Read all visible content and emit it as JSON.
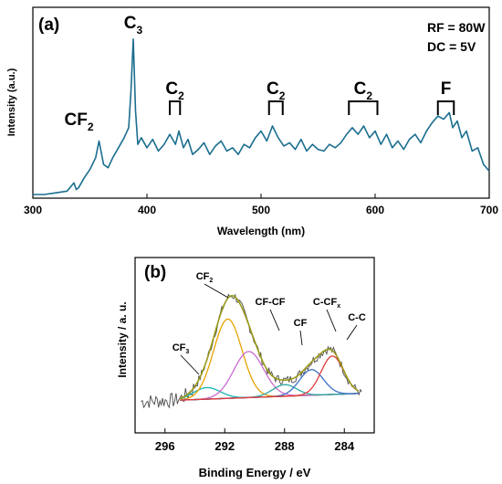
{
  "chart_data": [
    {
      "type": "line",
      "panel_label": "(a)",
      "xlabel": "Wavelength (nm)",
      "ylabel": "Intensity (a.u.)",
      "xlim": [
        300,
        700
      ],
      "x_ticks": [
        "300",
        "400",
        "500",
        "600",
        "700"
      ],
      "y_ticks_shown": false,
      "grid": false,
      "conditions": [
        "RF = 80W",
        "DC = 5V"
      ],
      "line_color": "#1b6e8f",
      "series": [
        {
          "x": [
            300,
            310,
            320,
            330,
            336,
            338,
            340,
            345,
            350,
            355,
            358,
            362,
            366,
            370,
            375,
            380,
            384,
            386,
            388,
            390,
            392,
            395,
            400,
            405,
            410,
            415,
            420,
            425,
            428,
            432,
            436,
            440,
            445,
            450,
            455,
            460,
            465,
            470,
            475,
            480,
            485,
            490,
            495,
            500,
            505,
            510,
            515,
            520,
            525,
            530,
            535,
            540,
            545,
            550,
            555,
            560,
            565,
            570,
            575,
            580,
            585,
            590,
            595,
            600,
            605,
            610,
            615,
            620,
            625,
            630,
            635,
            640,
            645,
            650,
            655,
            660,
            665,
            668,
            672,
            676,
            680,
            685,
            690,
            695,
            700
          ],
          "y": [
            0.0,
            0.0,
            0.01,
            0.02,
            0.07,
            0.03,
            0.04,
            0.1,
            0.15,
            0.22,
            0.32,
            0.18,
            0.16,
            0.22,
            0.28,
            0.34,
            0.4,
            0.62,
            0.93,
            0.5,
            0.3,
            0.34,
            0.28,
            0.33,
            0.26,
            0.3,
            0.36,
            0.3,
            0.38,
            0.28,
            0.33,
            0.24,
            0.27,
            0.31,
            0.24,
            0.29,
            0.32,
            0.26,
            0.28,
            0.24,
            0.3,
            0.28,
            0.34,
            0.38,
            0.32,
            0.41,
            0.34,
            0.29,
            0.31,
            0.27,
            0.33,
            0.26,
            0.3,
            0.27,
            0.26,
            0.3,
            0.28,
            0.31,
            0.36,
            0.4,
            0.36,
            0.41,
            0.34,
            0.38,
            0.3,
            0.36,
            0.28,
            0.32,
            0.27,
            0.33,
            0.36,
            0.31,
            0.38,
            0.43,
            0.47,
            0.45,
            0.49,
            0.4,
            0.44,
            0.34,
            0.38,
            0.26,
            0.28,
            0.18,
            0.14
          ]
        }
      ],
      "peak_labels": [
        {
          "base": "CF",
          "sub": "2",
          "x": 358
        },
        {
          "base": "C",
          "sub": "3",
          "x": 388
        },
        {
          "base": "C",
          "sub": "2",
          "x1": 420,
          "x2": 429
        },
        {
          "base": "C",
          "sub": "2",
          "x1": 507,
          "x2": 519
        },
        {
          "base": "C",
          "sub": "2",
          "x1": 577,
          "x2": 602
        },
        {
          "base": "F",
          "sub": "",
          "x1": 655,
          "x2": 669
        }
      ]
    },
    {
      "type": "line",
      "panel_label": "(b)",
      "xlabel": "Binding Energy / eV",
      "ylabel": "Intensity / a. u.",
      "xlim": [
        298,
        282
      ],
      "x_reversed": true,
      "x_ticks": [
        "296",
        "292",
        "288",
        "284"
      ],
      "y_ticks_shown": false,
      "grid": false,
      "colors": {
        "raw": "#4a4a4a",
        "envelope": "#9a9a1a",
        "background": "#7a2f3f",
        "CF3": "#17b3b3",
        "CF2": "#e8a200",
        "CF-CF": "#c86bcf",
        "CF": "#2aa6a0",
        "C-CFx": "#3a6fc4",
        "C-C": "#e23b3b"
      },
      "components": [
        {
          "label_base": "CF",
          "label_sub": "3",
          "center": 293.2,
          "amplitude": 0.09,
          "width": 0.9
        },
        {
          "label_base": "CF",
          "label_sub": "2",
          "center": 291.8,
          "amplitude": 0.62,
          "width": 0.95
        },
        {
          "label_base": "CF-CF",
          "label_sub": "",
          "center": 290.4,
          "amplitude": 0.36,
          "width": 1.0
        },
        {
          "label_base": "CF",
          "label_sub": "",
          "center": 288.0,
          "amplitude": 0.09,
          "width": 0.8
        },
        {
          "label_base": "C-CF",
          "label_sub": "x",
          "center": 286.2,
          "amplitude": 0.2,
          "width": 0.8
        },
        {
          "label_base": "C-C",
          "label_sub": "",
          "center": 284.8,
          "amplitude": 0.3,
          "width": 0.75
        }
      ],
      "background_line": {
        "x": [
          298,
          282
        ],
        "y": [
          0.0,
          0.07
        ]
      }
    }
  ]
}
